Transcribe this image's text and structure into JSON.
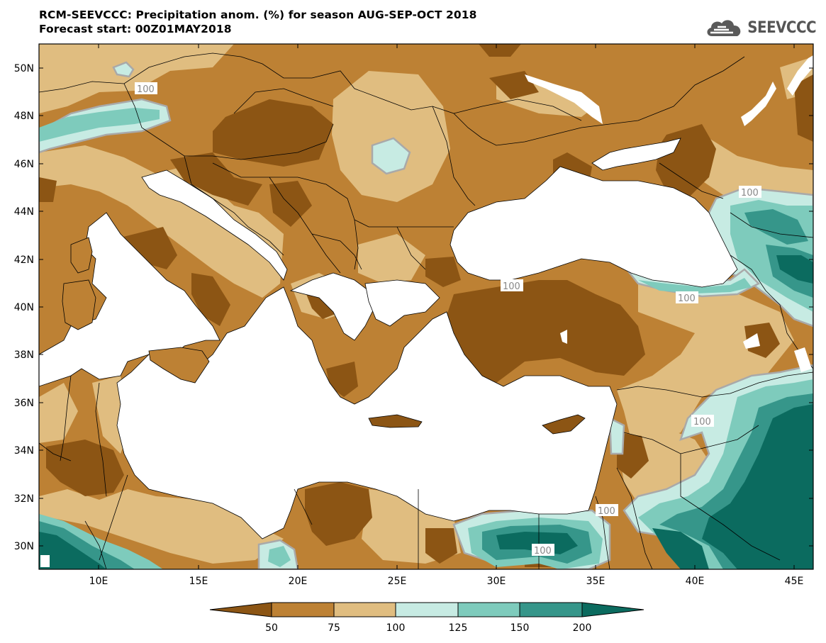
{
  "title_line1": "RCM-SEEVCCC: Precipitation anom. (%) for season AUG-SEP-OCT 2018",
  "title_line2": "Forecast start: 00Z01MAY2018",
  "logo_text": "SEEVCCC",
  "lat_labels": [
    "50N",
    "48N",
    "46N",
    "44N",
    "42N",
    "40N",
    "38N",
    "36N",
    "34N",
    "32N",
    "30N"
  ],
  "lon_labels": [
    "10E",
    "15E",
    "20E",
    "25E",
    "30E",
    "35E",
    "40E",
    "45E"
  ],
  "contour_labels": [
    "100",
    "100",
    "100",
    "100",
    "100",
    "100",
    "100"
  ],
  "colorbar": {
    "tick_labels": [
      "50",
      "75",
      "100",
      "125",
      "150",
      "200"
    ],
    "colors": [
      "#8c5514",
      "#bd8134",
      "#e0bd80",
      "#c7ebe3",
      "#7ecbbc",
      "#36968a",
      "#0b6b5f"
    ]
  }
}
